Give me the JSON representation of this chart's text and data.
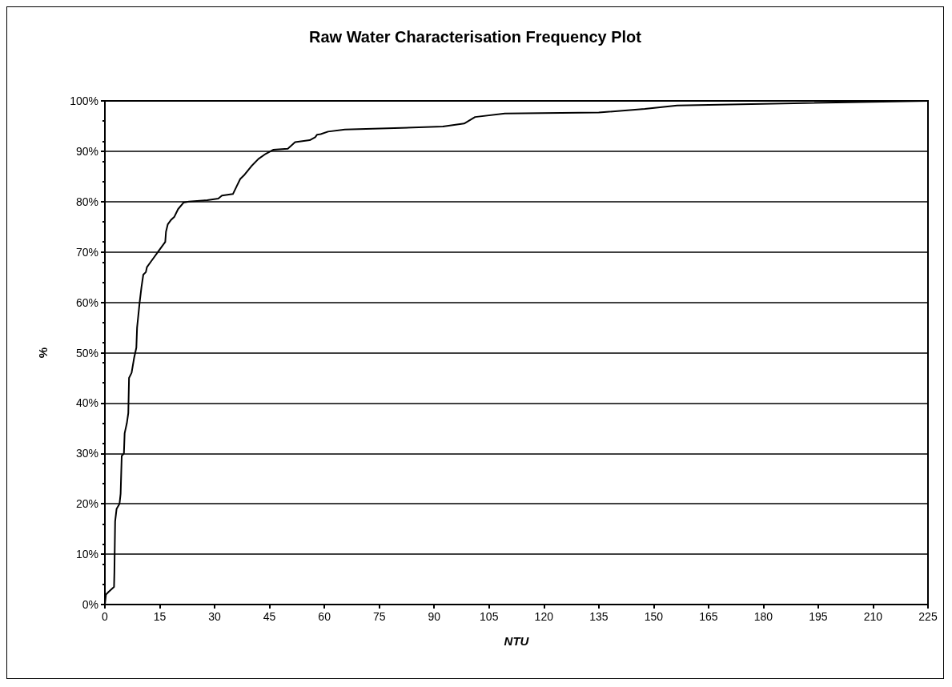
{
  "chart_data": {
    "type": "line",
    "title": "Raw Water Characterisation Frequency Plot",
    "xlabel": "NTU",
    "ylabel": "%",
    "x": [
      0,
      0.3,
      1,
      2.5,
      2.6,
      2.8,
      3.2,
      4,
      4.3,
      4.6,
      5.2,
      5.4,
      6,
      6.4,
      6.6,
      7.3,
      8,
      8.6,
      8.8,
      9.5,
      10,
      10.5,
      11.2,
      11.5,
      12.5,
      13.5,
      14.5,
      15.5,
      16.5,
      16.7,
      17.2,
      18,
      19,
      20,
      21.5,
      23,
      28,
      31,
      32,
      35,
      36,
      37,
      38,
      40,
      42,
      44,
      46,
      50,
      52,
      56,
      57.5,
      58,
      59,
      61,
      65.6,
      92.4,
      98.2,
      101.2,
      109.3,
      135,
      147.6,
      156.4,
      225
    ],
    "series": [
      {
        "color": "#000000",
        "values": [
          0,
          2,
          2.5,
          3.5,
          6.5,
          16.5,
          19,
          20,
          22,
          29.5,
          30,
          34,
          36,
          38,
          45,
          46,
          49,
          51,
          55,
          60,
          63,
          65.5,
          66,
          67,
          68,
          69,
          70,
          71,
          72,
          74,
          75.5,
          76.3,
          77,
          78.5,
          79.8,
          80,
          80.3,
          80.6,
          81.2,
          81.5,
          83,
          84.5,
          85.2,
          87,
          88.5,
          89.5,
          90.3,
          90.5,
          91.8,
          92.2,
          92.8,
          93.3,
          93.4,
          93.9,
          94.3,
          94.9,
          95.5,
          96.8,
          97.5,
          97.7,
          98.4,
          99.1,
          100
        ]
      }
    ],
    "xlim": [
      0,
      225
    ],
    "xticks": [
      0,
      15,
      30,
      45,
      60,
      75,
      90,
      105,
      120,
      135,
      150,
      165,
      180,
      195,
      210,
      225
    ],
    "ylim": [
      0,
      100
    ],
    "yticks": [
      {
        "value": 0,
        "label": "0%"
      },
      {
        "value": 10,
        "label": "10%"
      },
      {
        "value": 20,
        "label": "20%"
      },
      {
        "value": 30,
        "label": "30%"
      },
      {
        "value": 40,
        "label": "40%"
      },
      {
        "value": 50,
        "label": "50%"
      },
      {
        "value": 60,
        "label": "60%"
      },
      {
        "value": 70,
        "label": "70%"
      },
      {
        "value": 80,
        "label": "80%"
      },
      {
        "value": 90,
        "label": "90%"
      },
      {
        "value": 100,
        "label": "100%"
      }
    ],
    "grid": "y",
    "marker": "none",
    "line_style": "solid"
  }
}
